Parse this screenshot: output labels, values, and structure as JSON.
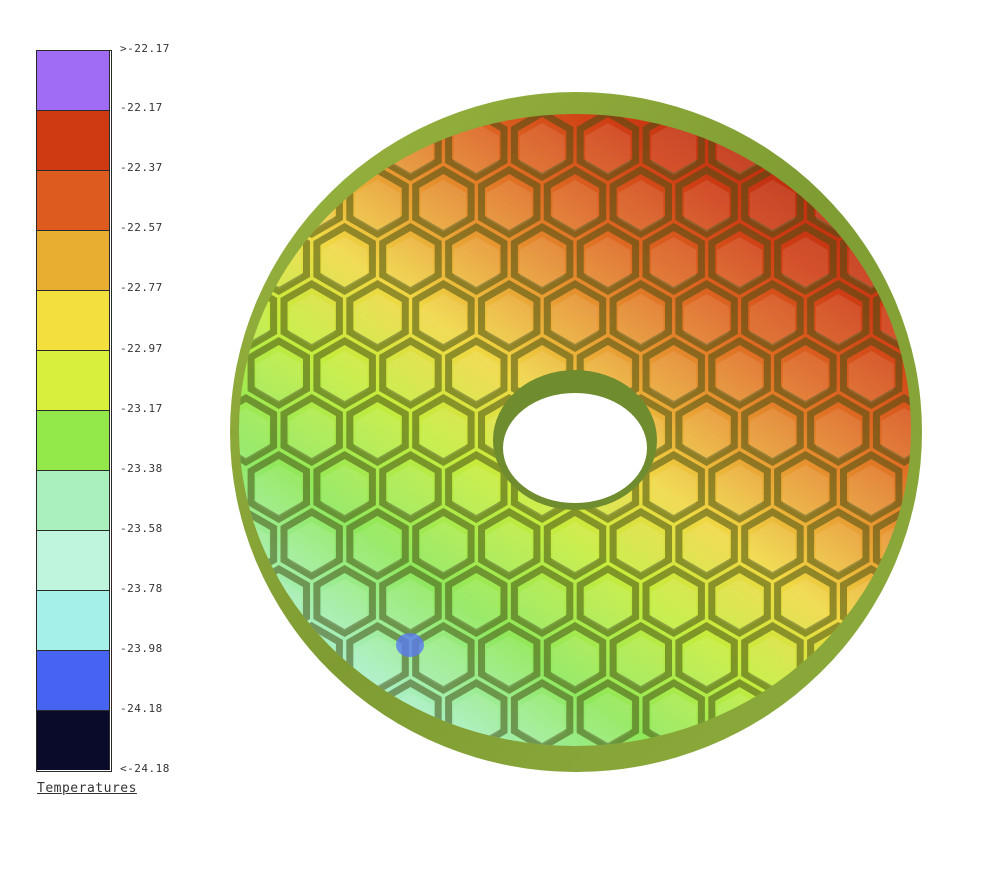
{
  "legend": {
    "title": "Temperatures",
    "colors": [
      "#a06cf5",
      "#cf3a12",
      "#dd5b1e",
      "#e8ae32",
      "#f3df3d",
      "#d8f03c",
      "#93e84a",
      "#aaf0bf",
      "#bff5dc",
      "#a6f0ea",
      "#4663f2",
      "#0a0a2a"
    ],
    "ticks": [
      ">-22.17",
      "-22.17",
      "-22.37",
      "-22.57",
      "-22.77",
      "-22.97",
      "-23.17",
      "-23.38",
      "-23.58",
      "-23.78",
      "-23.98",
      "-24.18",
      "<-24.18"
    ]
  },
  "mirror": {
    "rim_color": "#8fb03a",
    "center_hole_color": "#ffffff"
  }
}
